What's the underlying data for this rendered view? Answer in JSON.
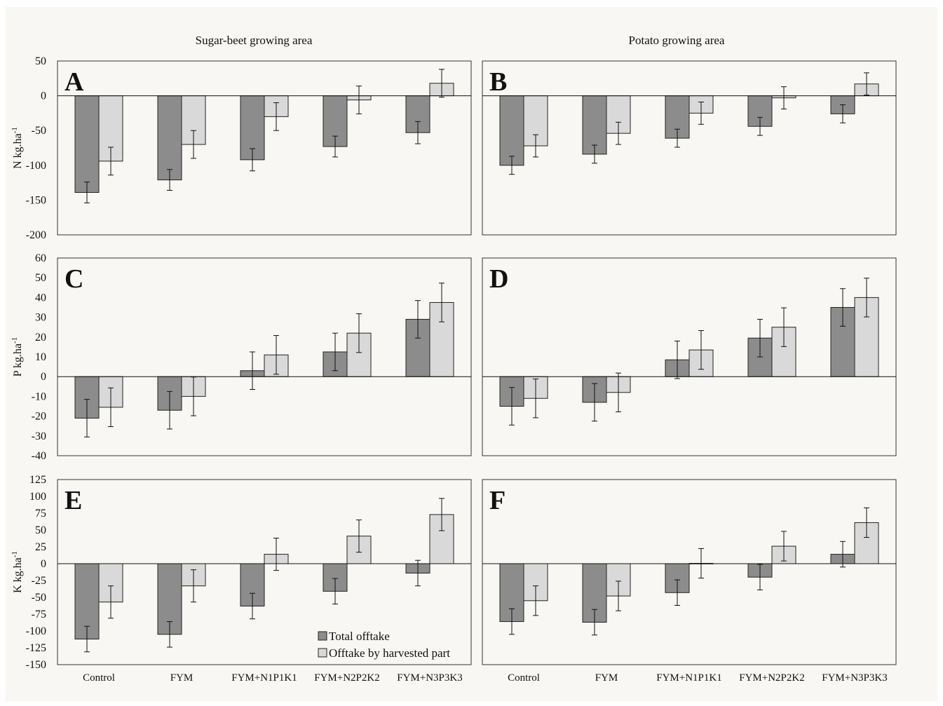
{
  "columns": [
    "Sugar-beet growing area",
    "Potato growing area"
  ],
  "legend": [
    "Total offtake",
    "Offtake by harvested part"
  ],
  "colors": {
    "total": "#8c8c8c",
    "harvested": "#d9d9d9",
    "frame_bg": "#f8f7f3"
  },
  "chart_data": [
    {
      "type": "bar",
      "panel_letter": "A",
      "ylabel": "N kg.ha",
      "ylabel_sup": "-1",
      "ylim": [
        -200,
        50
      ],
      "yticks": [
        50,
        0,
        -50,
        -100,
        -150,
        -200
      ],
      "categories": [
        "Control",
        "FYM",
        "FYM+N1P1K1",
        "FYM+N2P2K2",
        "FYM+N3P3K3"
      ],
      "series": [
        {
          "name": "Total offtake",
          "values": [
            -139,
            -121,
            -92,
            -73,
            -53
          ],
          "errors": [
            15,
            15,
            16,
            15,
            16
          ]
        },
        {
          "name": "Offtake by harvested part",
          "values": [
            -94,
            -70,
            -30,
            -6,
            18
          ],
          "errors": [
            20,
            20,
            20,
            20,
            20
          ]
        }
      ]
    },
    {
      "type": "bar",
      "panel_letter": "B",
      "ylabel": "",
      "ylabel_sup": "",
      "ylim": [
        -200,
        50
      ],
      "yticks": [],
      "categories": [
        "Control",
        "FYM",
        "FYM+N1P1K1",
        "FYM+N2P2K2",
        "FYM+N3P3K3"
      ],
      "series": [
        {
          "name": "Total offtake",
          "values": [
            -100,
            -84,
            -61,
            -44,
            -26
          ],
          "errors": [
            13,
            13,
            13,
            13,
            13
          ]
        },
        {
          "name": "Offtake by harvested part",
          "values": [
            -72,
            -54,
            -25,
            -3,
            17
          ],
          "errors": [
            16,
            16,
            16,
            16,
            16
          ]
        }
      ]
    },
    {
      "type": "bar",
      "panel_letter": "C",
      "ylabel": "P kg.ha",
      "ylabel_sup": "-1",
      "ylim": [
        -40,
        60
      ],
      "yticks": [
        60,
        50,
        40,
        30,
        20,
        10,
        0,
        -10,
        -20,
        -30,
        -40
      ],
      "categories": [
        "Control",
        "FYM",
        "FYM+N1P1K1",
        "FYM+N2P2K2",
        "FYM+N3P3K3"
      ],
      "series": [
        {
          "name": "Total offtake",
          "values": [
            -21,
            -17,
            3,
            12.5,
            29
          ],
          "errors": [
            9.5,
            9.5,
            9.5,
            9.5,
            9.5
          ]
        },
        {
          "name": "Offtake by harvested part",
          "values": [
            -15.5,
            -10,
            11,
            22,
            37.5
          ],
          "errors": [
            9.8,
            9.8,
            9.8,
            9.8,
            9.8
          ]
        }
      ]
    },
    {
      "type": "bar",
      "panel_letter": "D",
      "ylabel": "",
      "ylabel_sup": "",
      "ylim": [
        -40,
        60
      ],
      "yticks": [],
      "categories": [
        "Control",
        "FYM",
        "FYM+N1P1K1",
        "FYM+N2P2K2",
        "FYM+N3P3K3"
      ],
      "series": [
        {
          "name": "Total offtake",
          "values": [
            -15,
            -13,
            8.5,
            19.5,
            35
          ],
          "errors": [
            9.5,
            9.5,
            9.5,
            9.5,
            9.5
          ]
        },
        {
          "name": "Offtake by harvested part",
          "values": [
            -11,
            -8,
            13.5,
            25,
            40
          ],
          "errors": [
            9.8,
            9.8,
            9.8,
            9.8,
            9.8
          ]
        }
      ]
    },
    {
      "type": "bar",
      "panel_letter": "E",
      "ylabel": "K kg.ha",
      "ylabel_sup": "-1",
      "ylim": [
        -150,
        125
      ],
      "yticks": [
        125,
        100,
        75,
        50,
        25,
        0,
        -25,
        -50,
        -75,
        -100,
        -125,
        -150
      ],
      "categories": [
        "Control",
        "FYM",
        "FYM+N1P1K1",
        "FYM+N2P2K2",
        "FYM+N3P3K3"
      ],
      "series": [
        {
          "name": "Total offtake",
          "values": [
            -112,
            -105,
            -63,
            -41,
            -14
          ],
          "errors": [
            19,
            19,
            19,
            19,
            19
          ]
        },
        {
          "name": "Offtake by harvested part",
          "values": [
            -57,
            -33,
            14,
            41,
            73
          ],
          "errors": [
            24,
            24,
            24,
            24,
            24
          ]
        }
      ]
    },
    {
      "type": "bar",
      "panel_letter": "F",
      "ylabel": "",
      "ylabel_sup": "",
      "ylim": [
        -150,
        125
      ],
      "yticks": [],
      "categories": [
        "Control",
        "FYM",
        "FYM+N1P1K1",
        "FYM+N2P2K2",
        "FYM+N3P3K3"
      ],
      "series": [
        {
          "name": "Total offtake",
          "values": [
            -86,
            -87,
            -43,
            -20,
            14
          ],
          "errors": [
            19,
            19,
            19,
            19,
            19
          ]
        },
        {
          "name": "Offtake by harvested part",
          "values": [
            -55,
            -48,
            0.5,
            26,
            61
          ],
          "errors": [
            22,
            22,
            22,
            22,
            22
          ]
        }
      ]
    }
  ]
}
